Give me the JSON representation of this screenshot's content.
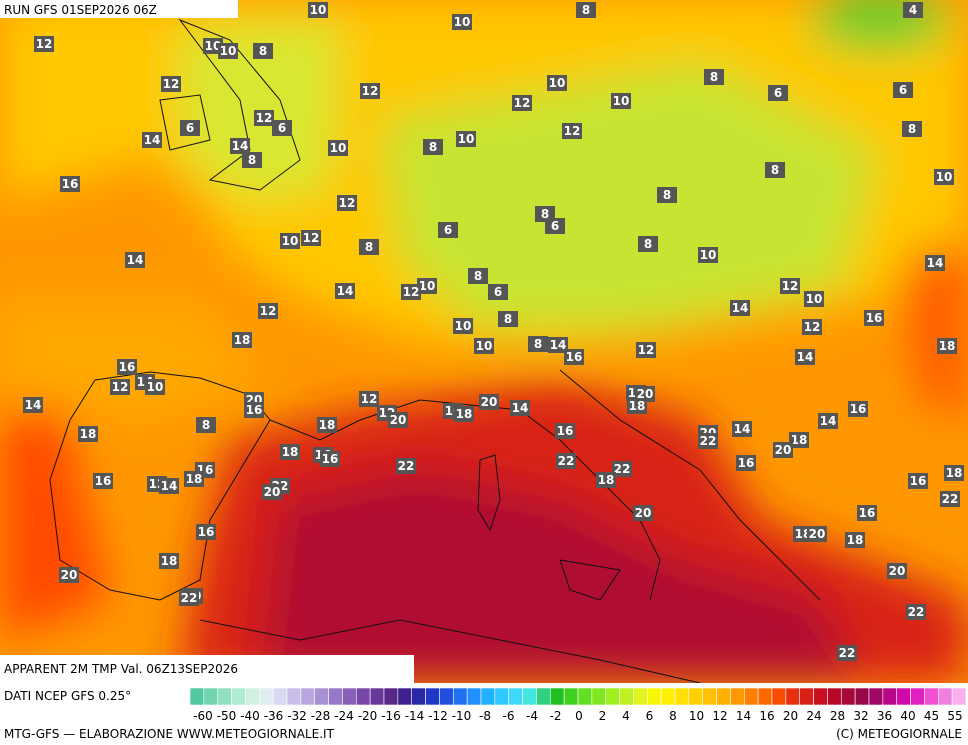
{
  "header": {
    "run": "RUN GFS 01SEP2026 06Z",
    "title": "APPARENT 2M TMP Val. 06Z13SEP2026"
  },
  "footer": {
    "source": "DATI NCEP GFS 0.25°",
    "credit": "MTG-GFS — ELABORAZIONE WWW.METEOGIORNALE.IT",
    "copyright": "(C) METEOGIORNALE"
  },
  "colorbar": {
    "ticks": [
      -60,
      -50,
      -40,
      -36,
      -32,
      -28,
      -24,
      -20,
      -16,
      -14,
      -12,
      -10,
      -8,
      -6,
      -4,
      -2,
      0,
      2,
      4,
      6,
      8,
      10,
      12,
      14,
      16,
      20,
      24,
      28,
      32,
      36,
      40,
      45,
      55
    ],
    "colors": [
      "#50c8a0",
      "#70d4b0",
      "#90e0c0",
      "#b0ecd0",
      "#d0f0e0",
      "#e0eef0",
      "#d8d8f0",
      "#c8c0e8",
      "#b8a8e0",
      "#a890d4",
      "#9878c8",
      "#8860b8",
      "#7848a8",
      "#683898",
      "#582888",
      "#402090",
      "#2828a8",
      "#2038c8",
      "#2050e0",
      "#2070f0",
      "#2090ff",
      "#20b0ff",
      "#30c8ff",
      "#40d8f8",
      "#40e8e0",
      "#30d080",
      "#20c020",
      "#40d020",
      "#60e020",
      "#80e820",
      "#a0f020",
      "#c0f020",
      "#e0f420",
      "#f8f800",
      "#fff000",
      "#ffe000",
      "#ffd000",
      "#ffc000",
      "#ffb000",
      "#ff9800",
      "#ff8000",
      "#ff6800",
      "#f84c00",
      "#e83010",
      "#d82018",
      "#c81020",
      "#b80828",
      "#a80838",
      "#980848",
      "#a00868",
      "#b80888",
      "#d008a8",
      "#e020c0",
      "#f050d0",
      "#f080e0",
      "#f8b0f0"
    ]
  },
  "map": {
    "labels": [
      10,
      10,
      8,
      4,
      12,
      10,
      10,
      8,
      12,
      12,
      10,
      12,
      10,
      8,
      6,
      6,
      8,
      14,
      6,
      12,
      6,
      14,
      8,
      10,
      10,
      8,
      12,
      16,
      8,
      10,
      12,
      8,
      8,
      6,
      6,
      10,
      12,
      8,
      8,
      14,
      10,
      14,
      8,
      6,
      10,
      12,
      14,
      12,
      12,
      10,
      14,
      8,
      10,
      16,
      12,
      18,
      10,
      8,
      14,
      16,
      12,
      14,
      18,
      16,
      12,
      14,
      10,
      20,
      16,
      12,
      14,
      12,
      20,
      16,
      18,
      20,
      14,
      12,
      20,
      18,
      16,
      14,
      8,
      18,
      18,
      16,
      20,
      14,
      22,
      18,
      20,
      18,
      16,
      16,
      22,
      22,
      22,
      16,
      16,
      16,
      12,
      14,
      18,
      22,
      20,
      18,
      16,
      18,
      22,
      16,
      20,
      16,
      18,
      20,
      18,
      18,
      20,
      20,
      20,
      22,
      22,
      22,
      22
    ]
  }
}
